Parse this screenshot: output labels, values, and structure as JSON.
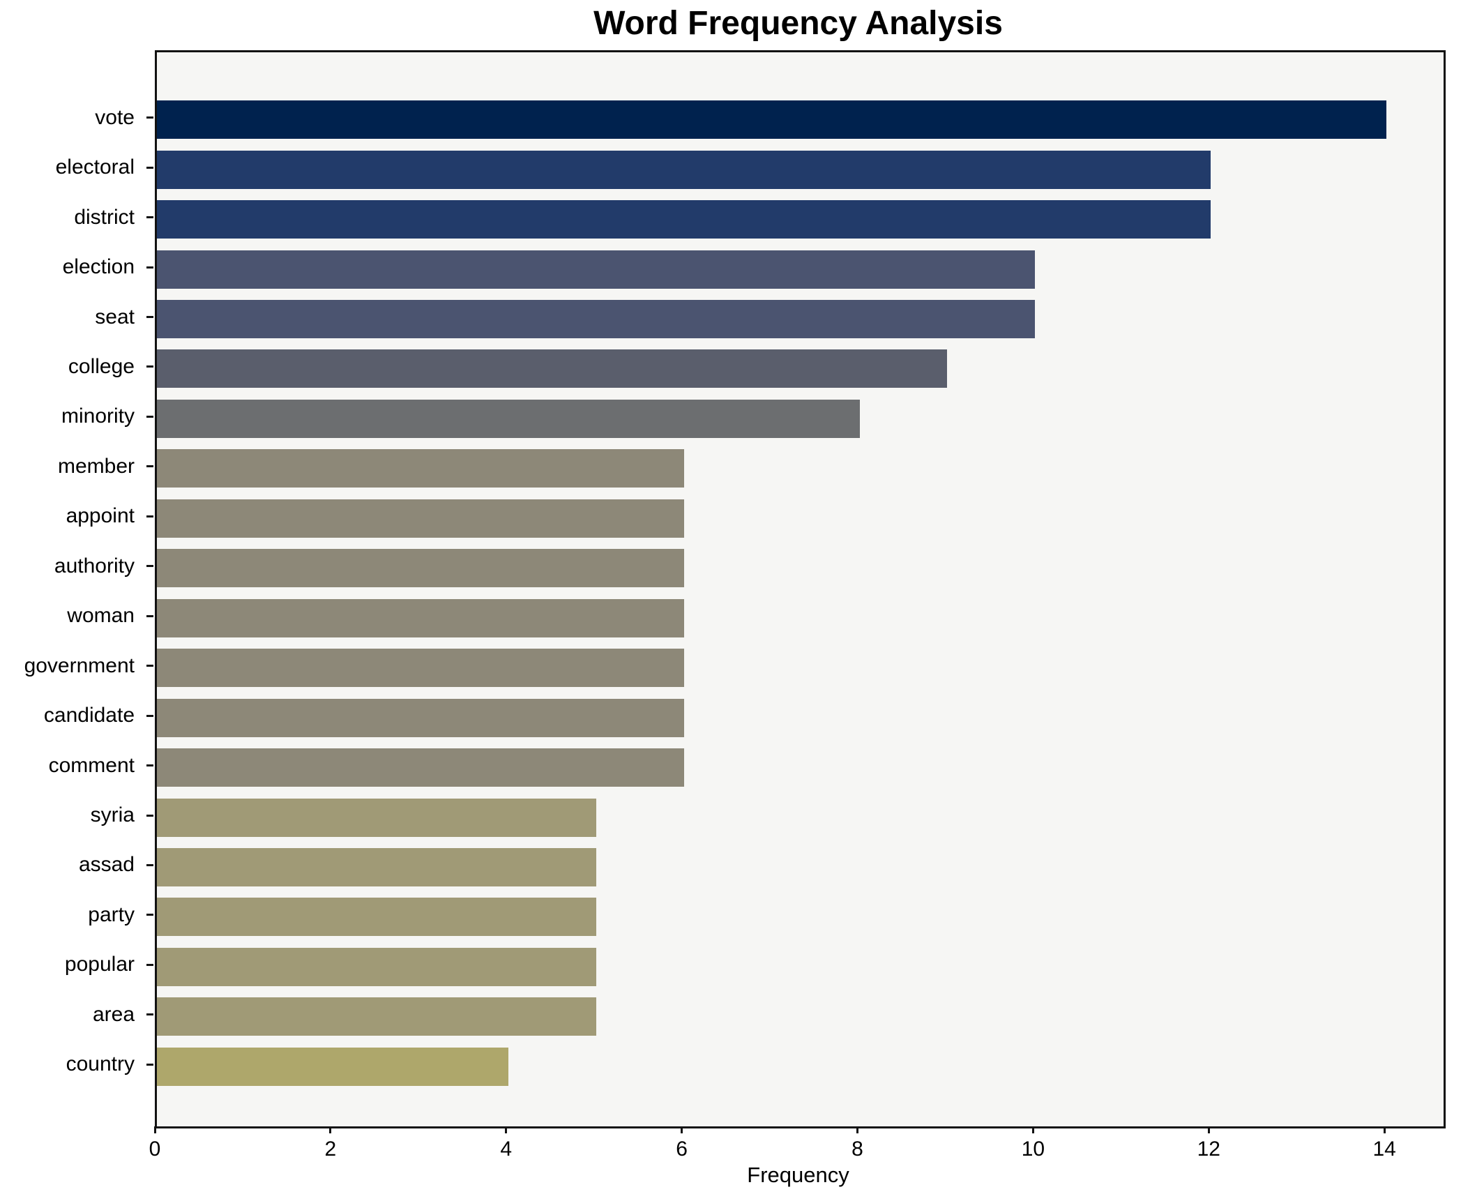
{
  "chart_data": {
    "type": "bar",
    "orientation": "horizontal",
    "title": "Word Frequency Analysis",
    "xlabel": "Frequency",
    "ylabel": "",
    "categories": [
      "vote",
      "electoral",
      "district",
      "election",
      "seat",
      "college",
      "minority",
      "member",
      "appoint",
      "authority",
      "woman",
      "government",
      "candidate",
      "comment",
      "syria",
      "assad",
      "party",
      "popular",
      "area",
      "country"
    ],
    "values": [
      14,
      12,
      12,
      10,
      10,
      9,
      8,
      6,
      6,
      6,
      6,
      6,
      6,
      6,
      5,
      5,
      5,
      5,
      5,
      4
    ],
    "bar_colors": [
      "#00224e",
      "#223b6a",
      "#223b6a",
      "#4b5470",
      "#4b5470",
      "#5a5e6c",
      "#6c6e70",
      "#8d8878",
      "#8d8878",
      "#8d8878",
      "#8d8878",
      "#8d8878",
      "#8d8878",
      "#8d8878",
      "#a09a76",
      "#a09a76",
      "#a09a76",
      "#a09a76",
      "#a09a76",
      "#aea76b"
    ],
    "xlim": [
      0,
      14.65
    ],
    "xticks": [
      0,
      2,
      4,
      6,
      8,
      10,
      12,
      14
    ],
    "grid": false,
    "legend": "none",
    "colormap": "cividis",
    "plot_background": "#f6f6f4",
    "figure_background": "#ffffff",
    "spine_color": "#121212"
  }
}
